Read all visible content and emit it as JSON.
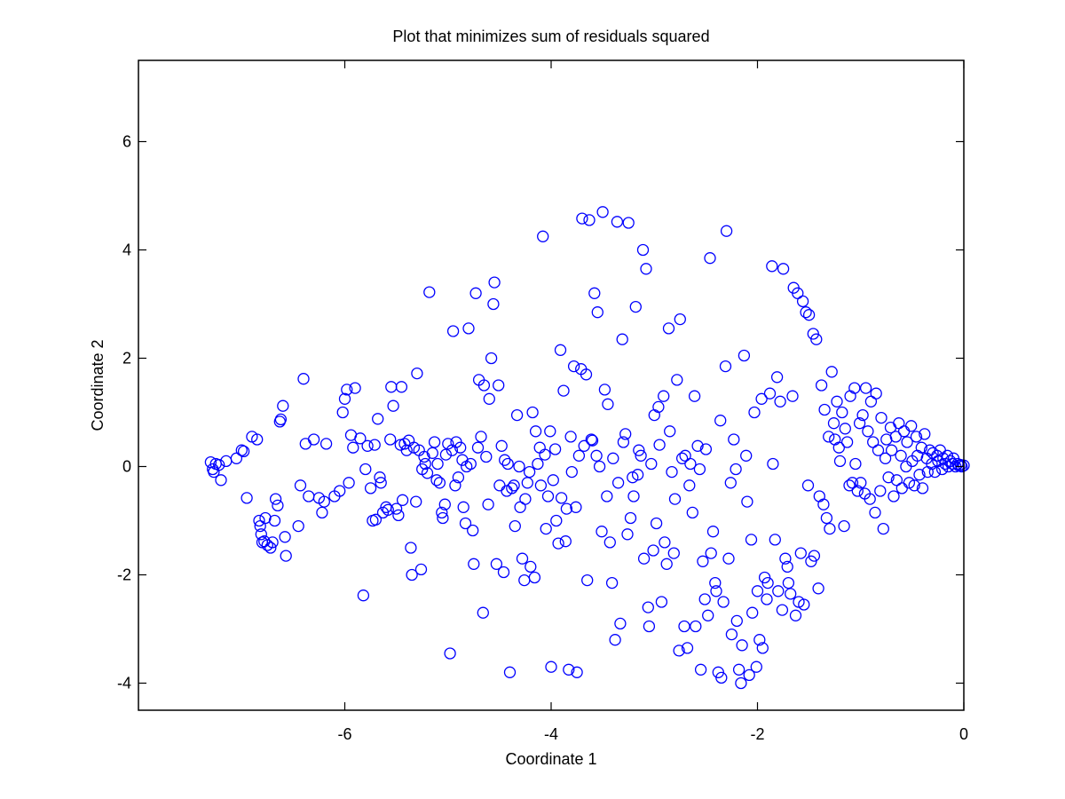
{
  "chart_data": {
    "type": "scatter",
    "title": "Plot that minimizes sum of residuals squared",
    "xlabel": "Coordinate 1",
    "ylabel": "Coordinate 2",
    "xlim": [
      -8,
      0
    ],
    "ylim": [
      -4.5,
      7.5
    ],
    "xticks": [
      -6,
      -4,
      -2,
      0
    ],
    "yticks": [
      -4,
      -2,
      0,
      2,
      4,
      6
    ],
    "grid": false,
    "legend": "none",
    "marker": "circle-open",
    "color": "#0000ff",
    "points": [
      [
        -7.3,
        0.08
      ],
      [
        -7.28,
        -0.05
      ],
      [
        -7.25,
        0.05
      ],
      [
        -7.27,
        -0.1
      ],
      [
        -7.22,
        0.03
      ],
      [
        -7.2,
        -0.25
      ],
      [
        -7.15,
        0.1
      ],
      [
        -7.05,
        0.15
      ],
      [
        -7.0,
        0.3
      ],
      [
        -6.98,
        0.28
      ],
      [
        -6.95,
        -0.58
      ],
      [
        -6.9,
        0.55
      ],
      [
        -6.85,
        0.5
      ],
      [
        -6.83,
        -1.0
      ],
      [
        -6.82,
        -1.1
      ],
      [
        -6.81,
        -1.25
      ],
      [
        -6.8,
        -1.4
      ],
      [
        -6.78,
        -1.38
      ],
      [
        -6.77,
        -0.95
      ],
      [
        -6.75,
        -1.45
      ],
      [
        -6.72,
        -1.5
      ],
      [
        -6.7,
        -1.4
      ],
      [
        -6.68,
        -1.0
      ],
      [
        -6.67,
        -0.6
      ],
      [
        -6.65,
        -0.72
      ],
      [
        -6.63,
        0.83
      ],
      [
        -6.62,
        0.87
      ],
      [
        -6.6,
        1.12
      ],
      [
        -6.58,
        -1.3
      ],
      [
        -6.57,
        -1.65
      ],
      [
        -6.45,
        -1.1
      ],
      [
        -6.43,
        -0.35
      ],
      [
        -6.4,
        1.62
      ],
      [
        -6.38,
        0.42
      ],
      [
        -6.35,
        -0.55
      ],
      [
        -6.3,
        0.5
      ],
      [
        -6.25,
        -0.58
      ],
      [
        -6.22,
        -0.85
      ],
      [
        -6.2,
        -0.65
      ],
      [
        -6.18,
        0.42
      ],
      [
        -6.1,
        -0.55
      ],
      [
        -6.05,
        -0.45
      ],
      [
        -6.02,
        1.0
      ],
      [
        -6.0,
        1.25
      ],
      [
        -5.98,
        1.42
      ],
      [
        -5.96,
        -0.3
      ],
      [
        -5.94,
        0.58
      ],
      [
        -5.92,
        0.35
      ],
      [
        -5.9,
        1.45
      ],
      [
        -5.85,
        0.52
      ],
      [
        -5.82,
        -2.38
      ],
      [
        -5.8,
        -0.05
      ],
      [
        -5.78,
        0.38
      ],
      [
        -5.75,
        -0.4
      ],
      [
        -5.73,
        -1.0
      ],
      [
        -5.71,
        0.4
      ],
      [
        -5.7,
        -0.98
      ],
      [
        -5.68,
        0.88
      ],
      [
        -5.66,
        -0.2
      ],
      [
        -5.65,
        -0.3
      ],
      [
        -5.63,
        -0.85
      ],
      [
        -5.6,
        -0.75
      ],
      [
        -5.58,
        -0.8
      ],
      [
        -5.56,
        0.5
      ],
      [
        -5.55,
        1.47
      ],
      [
        -5.53,
        1.12
      ],
      [
        -5.5,
        -0.78
      ],
      [
        -5.48,
        -0.9
      ],
      [
        -5.46,
        0.4
      ],
      [
        -5.45,
        1.47
      ],
      [
        -5.44,
        -0.62
      ],
      [
        -5.42,
        0.42
      ],
      [
        -5.4,
        0.3
      ],
      [
        -5.38,
        0.48
      ],
      [
        -5.36,
        -1.5
      ],
      [
        -5.35,
        -2.0
      ],
      [
        -5.33,
        0.35
      ],
      [
        -5.31,
        -0.65
      ],
      [
        -5.3,
        1.72
      ],
      [
        -5.28,
        0.3
      ],
      [
        -5.26,
        -1.9
      ],
      [
        -5.25,
        -0.05
      ],
      [
        -5.23,
        0.18
      ],
      [
        -5.22,
        0.05
      ],
      [
        -5.2,
        -0.12
      ],
      [
        -5.18,
        3.22
      ],
      [
        -5.15,
        0.25
      ],
      [
        -5.13,
        0.45
      ],
      [
        -5.11,
        -0.25
      ],
      [
        -5.1,
        0.05
      ],
      [
        -5.08,
        -0.3
      ],
      [
        -5.06,
        -0.85
      ],
      [
        -5.05,
        -0.95
      ],
      [
        -5.03,
        -0.7
      ],
      [
        -5.02,
        0.22
      ],
      [
        -5.0,
        0.42
      ],
      [
        -4.98,
        -3.45
      ],
      [
        -4.96,
        0.3
      ],
      [
        -4.95,
        2.5
      ],
      [
        -4.93,
        -0.35
      ],
      [
        -4.92,
        0.45
      ],
      [
        -4.9,
        -0.2
      ],
      [
        -4.88,
        0.35
      ],
      [
        -4.86,
        0.12
      ],
      [
        -4.85,
        -0.75
      ],
      [
        -4.83,
        -1.05
      ],
      [
        -4.82,
        0.0
      ],
      [
        -4.8,
        2.55
      ],
      [
        -4.78,
        0.05
      ],
      [
        -4.76,
        -1.18
      ],
      [
        -4.75,
        -1.8
      ],
      [
        -4.73,
        3.2
      ],
      [
        -4.71,
        0.35
      ],
      [
        -4.7,
        1.6
      ],
      [
        -4.68,
        0.55
      ],
      [
        -4.66,
        -2.7
      ],
      [
        -4.65,
        1.5
      ],
      [
        -4.63,
        0.18
      ],
      [
        -4.61,
        -0.7
      ],
      [
        -4.6,
        1.25
      ],
      [
        -4.58,
        2.0
      ],
      [
        -4.56,
        3.0
      ],
      [
        -4.55,
        3.4
      ],
      [
        -4.53,
        -1.8
      ],
      [
        -4.51,
        1.5
      ],
      [
        -4.5,
        -0.35
      ],
      [
        -4.48,
        0.38
      ],
      [
        -4.46,
        -1.95
      ],
      [
        -4.45,
        0.12
      ],
      [
        -4.43,
        -0.45
      ],
      [
        -4.42,
        0.05
      ],
      [
        -4.4,
        -3.8
      ],
      [
        -4.38,
        -0.4
      ],
      [
        -4.36,
        -0.35
      ],
      [
        -4.35,
        -1.1
      ],
      [
        -4.33,
        0.95
      ],
      [
        -4.31,
        0.0
      ],
      [
        -4.3,
        -0.75
      ],
      [
        -4.28,
        -1.7
      ],
      [
        -4.26,
        -2.1
      ],
      [
        -4.25,
        -0.6
      ],
      [
        -4.23,
        -0.3
      ],
      [
        -4.21,
        -0.1
      ],
      [
        -4.2,
        -1.85
      ],
      [
        -4.18,
        1.0
      ],
      [
        -4.16,
        -2.05
      ],
      [
        -4.15,
        0.65
      ],
      [
        -4.13,
        0.05
      ],
      [
        -4.11,
        0.35
      ],
      [
        -4.1,
        -0.35
      ],
      [
        -4.08,
        4.25
      ],
      [
        -4.06,
        0.22
      ],
      [
        -4.05,
        -1.15
      ],
      [
        -4.03,
        -0.55
      ],
      [
        -4.01,
        0.65
      ],
      [
        -4.0,
        -3.7
      ],
      [
        -3.98,
        -0.25
      ],
      [
        -3.96,
        0.32
      ],
      [
        -3.95,
        -1.0
      ],
      [
        -3.93,
        -1.42
      ],
      [
        -3.91,
        2.15
      ],
      [
        -3.9,
        -0.58
      ],
      [
        -3.88,
        1.4
      ],
      [
        -3.86,
        -1.38
      ],
      [
        -3.85,
        -0.78
      ],
      [
        -3.83,
        -3.75
      ],
      [
        -3.81,
        0.55
      ],
      [
        -3.8,
        -0.1
      ],
      [
        -3.78,
        1.85
      ],
      [
        -3.76,
        -0.75
      ],
      [
        -3.75,
        -3.8
      ],
      [
        -3.73,
        0.2
      ],
      [
        -3.71,
        1.8
      ],
      [
        -3.7,
        4.58
      ],
      [
        -3.68,
        0.38
      ],
      [
        -3.66,
        1.7
      ],
      [
        -3.65,
        -2.1
      ],
      [
        -3.63,
        4.55
      ],
      [
        -3.61,
        0.5
      ],
      [
        -3.6,
        0.48
      ],
      [
        -3.58,
        3.2
      ],
      [
        -3.56,
        0.2
      ],
      [
        -3.55,
        2.85
      ],
      [
        -3.53,
        0.0
      ],
      [
        -3.51,
        -1.2
      ],
      [
        -3.5,
        4.7
      ],
      [
        -3.48,
        1.42
      ],
      [
        -3.46,
        -0.55
      ],
      [
        -3.45,
        1.15
      ],
      [
        -3.43,
        -1.4
      ],
      [
        -3.41,
        -2.15
      ],
      [
        -3.4,
        0.15
      ],
      [
        -3.38,
        -3.2
      ],
      [
        -3.36,
        4.52
      ],
      [
        -3.35,
        -0.3
      ],
      [
        -3.33,
        -2.9
      ],
      [
        -3.31,
        2.35
      ],
      [
        -3.3,
        0.45
      ],
      [
        -3.28,
        0.6
      ],
      [
        -3.26,
        -1.25
      ],
      [
        -3.25,
        4.5
      ],
      [
        -3.23,
        -0.95
      ],
      [
        -3.21,
        -0.2
      ],
      [
        -3.2,
        -0.55
      ],
      [
        -3.18,
        2.95
      ],
      [
        -3.16,
        -0.15
      ],
      [
        -3.15,
        0.3
      ],
      [
        -3.13,
        0.2
      ],
      [
        -3.11,
        4.0
      ],
      [
        -3.1,
        -1.7
      ],
      [
        -3.08,
        3.65
      ],
      [
        -3.06,
        -2.6
      ],
      [
        -3.05,
        -2.95
      ],
      [
        -3.03,
        0.05
      ],
      [
        -3.01,
        -1.55
      ],
      [
        -3.0,
        0.95
      ],
      [
        -2.98,
        -1.05
      ],
      [
        -2.96,
        1.1
      ],
      [
        -2.95,
        0.4
      ],
      [
        -2.93,
        -2.5
      ],
      [
        -2.91,
        1.3
      ],
      [
        -2.9,
        -1.4
      ],
      [
        -2.88,
        -1.8
      ],
      [
        -2.86,
        2.55
      ],
      [
        -2.85,
        0.65
      ],
      [
        -2.83,
        -0.1
      ],
      [
        -2.81,
        -1.6
      ],
      [
        -2.8,
        -0.6
      ],
      [
        -2.78,
        1.6
      ],
      [
        -2.76,
        -3.4
      ],
      [
        -2.75,
        2.72
      ],
      [
        -2.73,
        0.15
      ],
      [
        -2.71,
        -2.95
      ],
      [
        -2.7,
        0.2
      ],
      [
        -2.68,
        -3.35
      ],
      [
        -2.66,
        -0.35
      ],
      [
        -2.65,
        0.05
      ],
      [
        -2.63,
        -0.85
      ],
      [
        -2.61,
        1.3
      ],
      [
        -2.6,
        -2.95
      ],
      [
        -2.58,
        0.38
      ],
      [
        -2.56,
        -0.05
      ],
      [
        -2.55,
        -3.75
      ],
      [
        -2.53,
        -1.75
      ],
      [
        -2.51,
        -2.45
      ],
      [
        -2.5,
        0.32
      ],
      [
        -2.48,
        -2.75
      ],
      [
        -2.46,
        3.85
      ],
      [
        -2.45,
        -1.6
      ],
      [
        -2.43,
        -1.2
      ],
      [
        -2.41,
        -2.15
      ],
      [
        -2.4,
        -2.3
      ],
      [
        -2.38,
        -3.8
      ],
      [
        -2.36,
        0.85
      ],
      [
        -2.35,
        -3.9
      ],
      [
        -2.33,
        -2.5
      ],
      [
        -2.31,
        1.85
      ],
      [
        -2.3,
        4.35
      ],
      [
        -2.28,
        -1.7
      ],
      [
        -2.26,
        -0.3
      ],
      [
        -2.25,
        -3.1
      ],
      [
        -2.23,
        0.5
      ],
      [
        -2.21,
        -0.05
      ],
      [
        -2.2,
        -2.85
      ],
      [
        -2.18,
        -3.75
      ],
      [
        -2.16,
        -4.0
      ],
      [
        -2.15,
        -3.3
      ],
      [
        -2.13,
        2.05
      ],
      [
        -2.11,
        0.2
      ],
      [
        -2.1,
        -0.65
      ],
      [
        -2.08,
        -3.85
      ],
      [
        -2.06,
        -1.35
      ],
      [
        -2.05,
        -2.7
      ],
      [
        -2.03,
        1.0
      ],
      [
        -2.01,
        -3.7
      ],
      [
        -2.0,
        -2.3
      ],
      [
        -1.98,
        -3.2
      ],
      [
        -1.96,
        1.25
      ],
      [
        -1.95,
        -3.35
      ],
      [
        -1.93,
        -2.05
      ],
      [
        -1.91,
        -2.45
      ],
      [
        -1.9,
        -2.15
      ],
      [
        -1.88,
        1.35
      ],
      [
        -1.86,
        3.7
      ],
      [
        -1.85,
        0.05
      ],
      [
        -1.83,
        -1.35
      ],
      [
        -1.81,
        1.65
      ],
      [
        -1.8,
        -2.3
      ],
      [
        -1.78,
        1.2
      ],
      [
        -1.76,
        -2.65
      ],
      [
        -1.75,
        3.65
      ],
      [
        -1.73,
        -1.7
      ],
      [
        -1.71,
        -1.85
      ],
      [
        -1.7,
        -2.15
      ],
      [
        -1.68,
        -2.35
      ],
      [
        -1.66,
        1.3
      ],
      [
        -1.65,
        3.3
      ],
      [
        -1.63,
        -2.75
      ],
      [
        -1.61,
        3.2
      ],
      [
        -1.6,
        -2.5
      ],
      [
        -1.58,
        -1.6
      ],
      [
        -1.56,
        3.05
      ],
      [
        -1.55,
        -2.55
      ],
      [
        -1.53,
        2.85
      ],
      [
        -1.51,
        -0.35
      ],
      [
        -1.5,
        2.8
      ],
      [
        -1.48,
        -1.75
      ],
      [
        -1.46,
        2.45
      ],
      [
        -1.45,
        -1.65
      ],
      [
        -1.43,
        2.35
      ],
      [
        -1.41,
        -2.25
      ],
      [
        -1.4,
        -0.55
      ],
      [
        -1.38,
        1.5
      ],
      [
        -1.36,
        -0.7
      ],
      [
        -1.35,
        1.05
      ],
      [
        -1.33,
        -0.95
      ],
      [
        -1.31,
        0.55
      ],
      [
        -1.3,
        -1.15
      ],
      [
        -1.28,
        1.75
      ],
      [
        -1.26,
        0.8
      ],
      [
        -1.25,
        0.5
      ],
      [
        -1.23,
        1.2
      ],
      [
        -1.21,
        0.35
      ],
      [
        -1.2,
        0.1
      ],
      [
        -1.18,
        1.0
      ],
      [
        -1.16,
        -1.1
      ],
      [
        -1.15,
        0.7
      ],
      [
        -1.13,
        0.45
      ],
      [
        -1.11,
        -0.35
      ],
      [
        -1.1,
        1.3
      ],
      [
        -1.08,
        -0.3
      ],
      [
        -1.06,
        1.45
      ],
      [
        -1.05,
        0.05
      ],
      [
        -1.03,
        -0.45
      ],
      [
        -1.01,
        0.8
      ],
      [
        -1.0,
        -0.3
      ],
      [
        -0.98,
        0.95
      ],
      [
        -0.96,
        -0.5
      ],
      [
        -0.95,
        1.45
      ],
      [
        -0.93,
        0.65
      ],
      [
        -0.91,
        -0.6
      ],
      [
        -0.9,
        1.2
      ],
      [
        -0.88,
        0.45
      ],
      [
        -0.86,
        -0.85
      ],
      [
        -0.85,
        1.35
      ],
      [
        -0.83,
        0.3
      ],
      [
        -0.81,
        -0.45
      ],
      [
        -0.8,
        0.9
      ],
      [
        -0.78,
        -1.15
      ],
      [
        -0.76,
        0.15
      ],
      [
        -0.75,
        0.5
      ],
      [
        -0.73,
        -0.2
      ],
      [
        -0.71,
        0.72
      ],
      [
        -0.7,
        0.3
      ],
      [
        -0.68,
        -0.55
      ],
      [
        -0.66,
        0.55
      ],
      [
        -0.65,
        -0.25
      ],
      [
        -0.63,
        0.8
      ],
      [
        -0.61,
        0.2
      ],
      [
        -0.6,
        -0.4
      ],
      [
        -0.58,
        0.65
      ],
      [
        -0.56,
        0.0
      ],
      [
        -0.55,
        0.45
      ],
      [
        -0.53,
        -0.3
      ],
      [
        -0.51,
        0.75
      ],
      [
        -0.5,
        0.1
      ],
      [
        -0.48,
        -0.35
      ],
      [
        -0.46,
        0.55
      ],
      [
        -0.45,
        0.2
      ],
      [
        -0.43,
        -0.15
      ],
      [
        -0.41,
        0.35
      ],
      [
        -0.4,
        -0.4
      ],
      [
        -0.38,
        0.6
      ],
      [
        -0.36,
        0.15
      ],
      [
        -0.35,
        -0.1
      ],
      [
        -0.33,
        0.3
      ],
      [
        -0.31,
        0.05
      ],
      [
        -0.3,
        0.25
      ],
      [
        -0.28,
        -0.1
      ],
      [
        -0.26,
        0.2
      ],
      [
        -0.25,
        0.1
      ],
      [
        -0.23,
        0.3
      ],
      [
        -0.21,
        -0.05
      ],
      [
        -0.2,
        0.15
      ],
      [
        -0.18,
        0.05
      ],
      [
        -0.16,
        0.2
      ],
      [
        -0.15,
        0.0
      ],
      [
        -0.13,
        0.1
      ],
      [
        -0.11,
        0.05
      ],
      [
        -0.1,
        0.15
      ],
      [
        -0.08,
        0.0
      ],
      [
        -0.06,
        0.05
      ],
      [
        -0.05,
        0.02
      ],
      [
        -0.03,
        0.03
      ],
      [
        -0.02,
        0.0
      ],
      [
        0.0,
        0.02
      ]
    ]
  }
}
